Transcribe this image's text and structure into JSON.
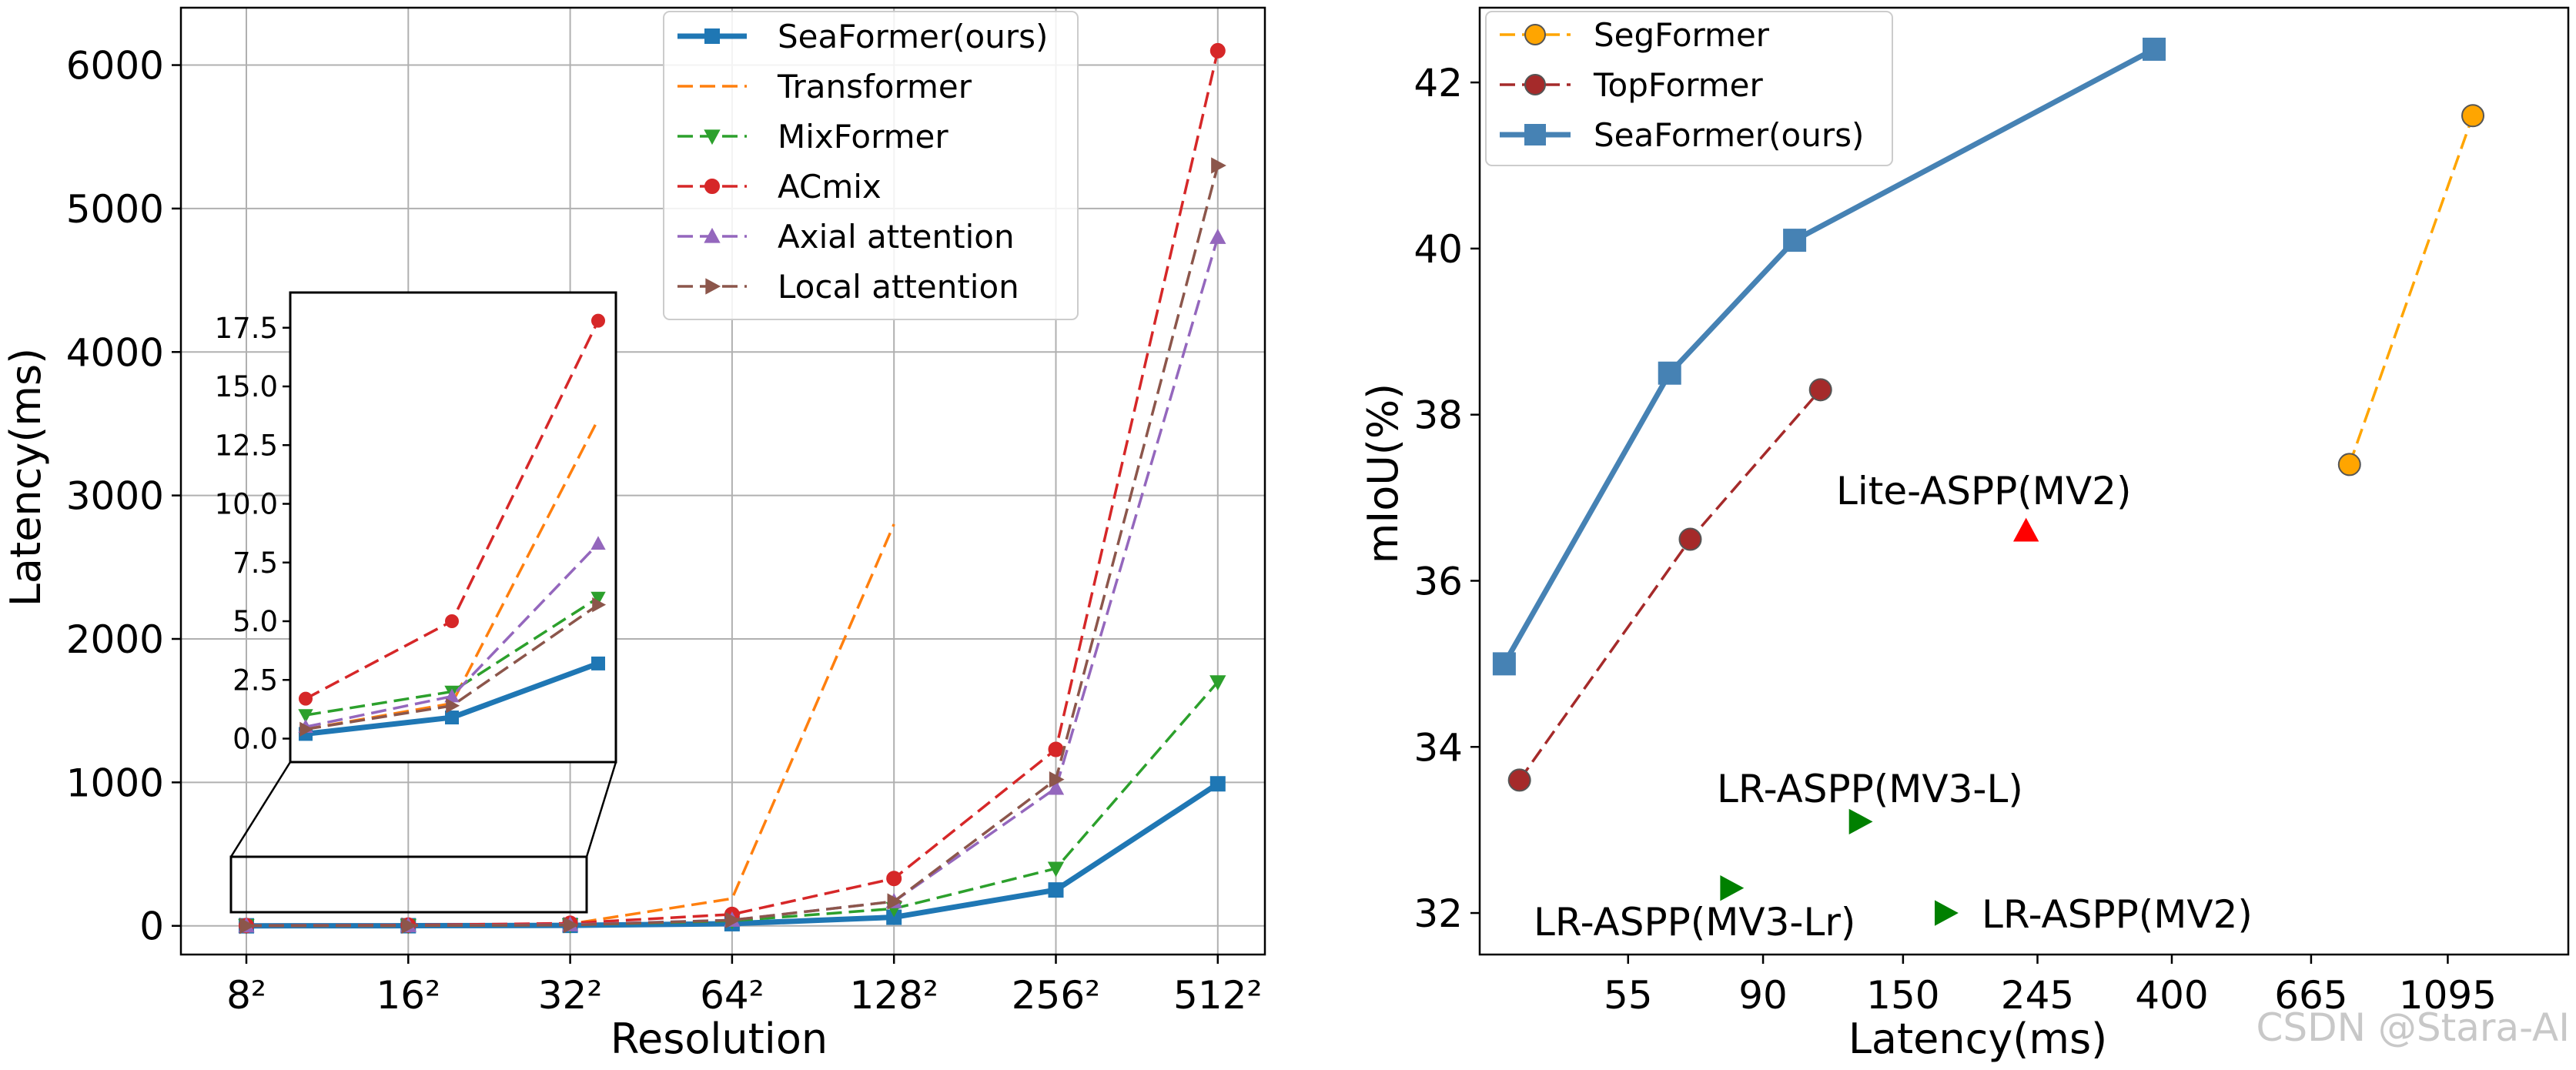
{
  "watermark": "CSDN @Stara-AI",
  "chart_data": [
    {
      "type": "line",
      "xlabel": "Resolution",
      "ylabel": "Latency(ms)",
      "categories": [
        "8²",
        "16²",
        "32²",
        "64²",
        "128²",
        "256²",
        "512²"
      ],
      "yticks": [
        0,
        1000,
        2000,
        3000,
        4000,
        5000,
        6000
      ],
      "ylim": [
        -200,
        6400
      ],
      "grid": true,
      "legend_position": "top-right",
      "series": [
        {
          "name": "SeaFormer(ours)",
          "color": "#1f77b4",
          "style": "solid",
          "marker": "square",
          "values": [
            0.2,
            0.9,
            3.2,
            15,
            60,
            250,
            990
          ]
        },
        {
          "name": "Transformer",
          "color": "#ff7f0e",
          "style": "dashed",
          "marker": "none",
          "values": [
            0.4,
            1.5,
            13.6,
            190,
            2800,
            null,
            null
          ]
        },
        {
          "name": "MixFormer",
          "color": "#2ca02c",
          "style": "dashed",
          "marker": "triangle-down",
          "values": [
            1.0,
            2.0,
            6.0,
            35,
            120,
            400,
            1700
          ]
        },
        {
          "name": "ACmix",
          "color": "#d62728",
          "style": "dashed",
          "marker": "circle",
          "values": [
            1.7,
            5.0,
            17.8,
            80,
            330,
            1230,
            6100
          ]
        },
        {
          "name": "Axial attention",
          "color": "#9467bd",
          "style": "dashed",
          "marker": "triangle-up",
          "values": [
            0.5,
            1.8,
            8.3,
            40,
            170,
            960,
            4800
          ]
        },
        {
          "name": "Local attention",
          "color": "#8c564b",
          "style": "dashed",
          "marker": "triangle-right",
          "values": [
            0.4,
            1.4,
            5.7,
            40,
            170,
            1020,
            5300
          ]
        }
      ],
      "inset": {
        "categories": [
          "8²",
          "16²",
          "32²"
        ],
        "yticks": [
          0.0,
          2.5,
          5.0,
          7.5,
          10.0,
          12.5,
          15.0,
          17.5
        ],
        "ytick_labels": [
          "0.0",
          "2.5",
          "5.0",
          "7.5",
          "10.0",
          "12.5",
          "15.0",
          "17.5"
        ],
        "ylim": [
          -1,
          19
        ]
      }
    },
    {
      "type": "scatter",
      "xlabel": "Latency(ms)",
      "ylabel": "mIoU(%)",
      "xscale": "log",
      "xticks": [
        55,
        90,
        150,
        245,
        400,
        665,
        1095
      ],
      "yticks": [
        32,
        34,
        36,
        38,
        40,
        42
      ],
      "xlim": [
        32,
        1700
      ],
      "ylim": [
        31.5,
        42.9
      ],
      "grid": false,
      "legend_position": "top-left",
      "series": [
        {
          "name": "SegFormer",
          "color": "#ffa500",
          "style": "dashed",
          "marker": "circle",
          "points": [
            [
              765,
              37.4
            ],
            [
              1200,
              41.6
            ]
          ]
        },
        {
          "name": "TopFormer",
          "color": "#a52a2a",
          "style": "dashed",
          "marker": "circle",
          "points": [
            [
              37,
              33.6
            ],
            [
              69,
              36.5
            ],
            [
              111,
              38.3
            ]
          ]
        },
        {
          "name": "SeaFormer(ours)",
          "color": "#4682b4",
          "style": "solid",
          "marker": "square",
          "points": [
            [
              35,
              35.0
            ],
            [
              64,
              38.5
            ],
            [
              101,
              40.1
            ],
            [
              375,
              42.4
            ]
          ]
        }
      ],
      "annotations": [
        {
          "text": "Lite-ASPP(MV2)",
          "point": [
            235,
            36.6
          ],
          "marker": "triangle-up",
          "color": "#ff0000"
        },
        {
          "text": "LR-ASPP(MV3-L)",
          "point": [
            128,
            33.1
          ],
          "marker": "triangle-right",
          "color": "#008000"
        },
        {
          "text": "LR-ASPP(MV3-Lr)",
          "point": [
            80,
            32.3
          ],
          "marker": "triangle-right",
          "color": "#008000"
        },
        {
          "text": "LR-ASPP(MV2)",
          "point": [
            175,
            32.0
          ],
          "marker": "triangle-right",
          "color": "#008000"
        }
      ]
    }
  ]
}
